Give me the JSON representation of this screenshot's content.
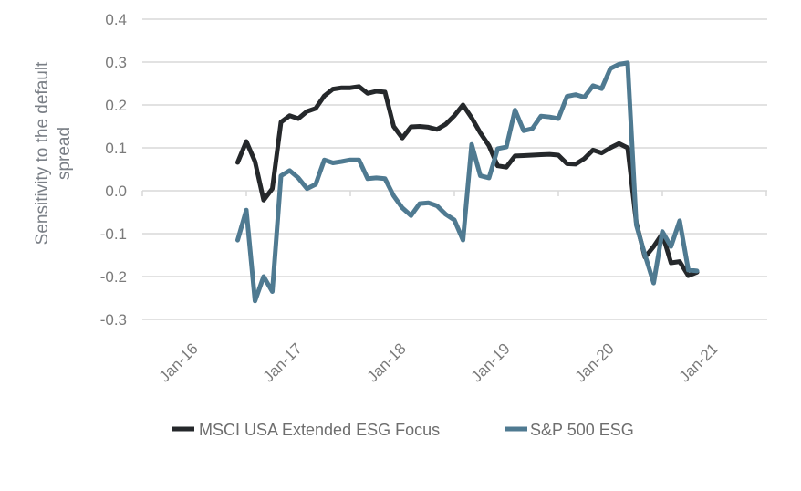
{
  "chart_data": {
    "type": "line",
    "title": "",
    "xlabel": "",
    "ylabel": "Sensitivity to the default spread",
    "ylabel_lines": [
      "Sensitivity to the default",
      "spread"
    ],
    "ylim": [
      -0.3,
      0.4
    ],
    "yticks": [
      0.4,
      0.3,
      0.2,
      0.1,
      0.0,
      -0.1,
      -0.2,
      -0.3
    ],
    "ytick_labels": [
      "0.4",
      "0.3",
      "0.2",
      "0.1",
      "0.0",
      "-0.1",
      "-0.2",
      "-0.3"
    ],
    "xtick_labels": [
      "Jan-16",
      "Jan-17",
      "Jan-18",
      "Jan-19",
      "Jan-20",
      "Jan-21"
    ],
    "x_start": "Jun-16",
    "x_end": "Nov-20",
    "x_frequency": "monthly",
    "grid": true,
    "legend_position": "bottom",
    "series": [
      {
        "name": "MSCI USA Extended ESG Focus",
        "color": "#25282b",
        "values": [
          0.066,
          0.115,
          0.068,
          -0.022,
          0.005,
          0.16,
          0.175,
          0.168,
          0.185,
          0.192,
          0.221,
          0.237,
          0.24,
          0.24,
          0.243,
          0.227,
          0.232,
          0.23,
          0.15,
          0.123,
          0.149,
          0.15,
          0.148,
          0.143,
          0.155,
          0.175,
          0.2,
          0.17,
          0.135,
          0.105,
          0.058,
          0.055,
          0.081,
          0.082,
          0.083,
          0.084,
          0.085,
          0.083,
          0.063,
          0.062,
          0.075,
          0.095,
          0.088,
          0.1,
          0.11,
          0.1,
          -0.075,
          -0.155,
          -0.13,
          -0.1,
          -0.168,
          -0.165,
          -0.198,
          -0.19
        ]
      },
      {
        "name": "S&P 500 ESG",
        "color": "#4f7a91",
        "values": [
          -0.115,
          -0.045,
          -0.257,
          -0.2,
          -0.235,
          0.035,
          0.047,
          0.03,
          0.005,
          0.015,
          0.072,
          0.065,
          0.068,
          0.072,
          0.072,
          0.028,
          0.03,
          0.028,
          -0.012,
          -0.04,
          -0.058,
          -0.03,
          -0.028,
          -0.035,
          -0.055,
          -0.068,
          -0.115,
          0.108,
          0.035,
          0.03,
          0.098,
          0.102,
          0.188,
          0.14,
          0.145,
          0.174,
          0.172,
          0.168,
          0.22,
          0.224,
          0.218,
          0.245,
          0.238,
          0.285,
          0.295,
          0.298,
          -0.08,
          -0.15,
          -0.215,
          -0.095,
          -0.13,
          -0.07,
          -0.185,
          -0.187
        ]
      }
    ]
  }
}
